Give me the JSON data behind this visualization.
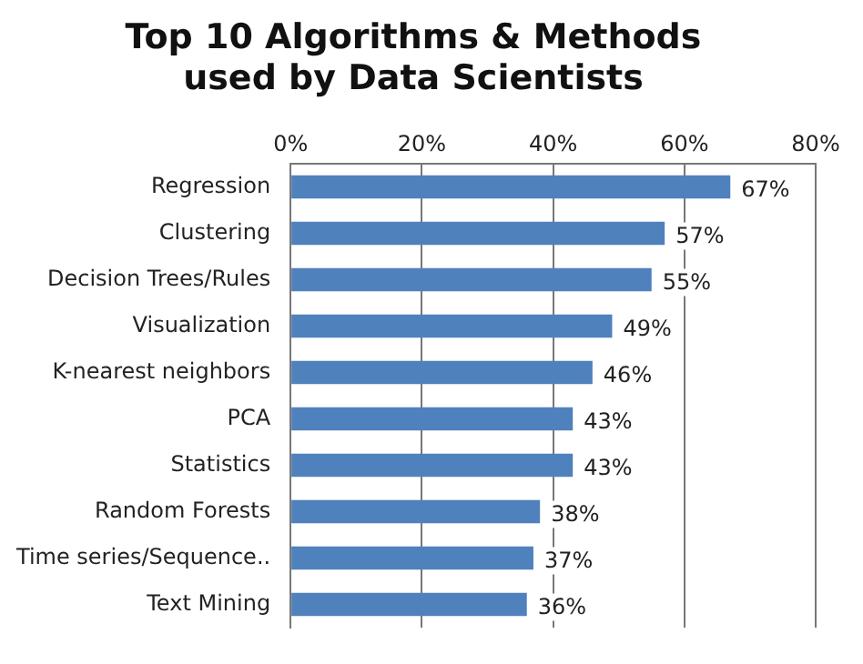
{
  "chart_data": {
    "type": "bar",
    "orientation": "horizontal",
    "title": "Top 10 Algorithms & Methods\nused by Data Scientists",
    "categories": [
      "Regression",
      "Clustering",
      "Decision Trees/Rules",
      "Visualization",
      "K-nearest neighbors",
      "PCA",
      "Statistics",
      "Random Forests",
      "Time series/Sequence..",
      "Text Mining"
    ],
    "values": [
      67,
      57,
      55,
      49,
      46,
      43,
      43,
      38,
      37,
      36
    ],
    "value_labels": [
      "67%",
      "57%",
      "55%",
      "49%",
      "46%",
      "43%",
      "43%",
      "38%",
      "37%",
      "36%"
    ],
    "color": "#4f81bd",
    "xlim": [
      0,
      80
    ],
    "xticks": [
      {
        "value": 0,
        "label": "0%"
      },
      {
        "value": 20,
        "label": "20%"
      },
      {
        "value": 40,
        "label": "40%"
      },
      {
        "value": 60,
        "label": "60%"
      },
      {
        "value": 80,
        "label": "80%"
      }
    ],
    "grid": "x",
    "legend": false
  }
}
